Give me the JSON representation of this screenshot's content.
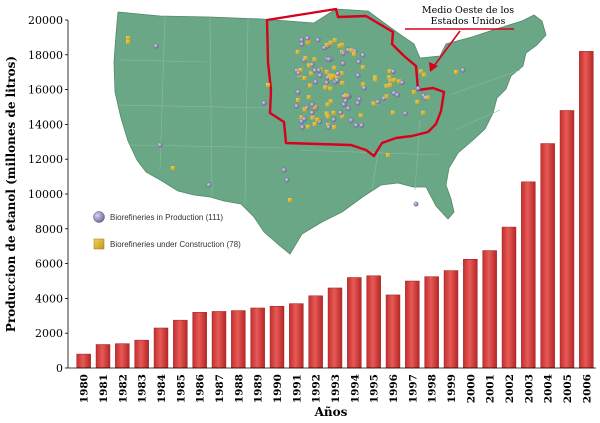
{
  "chart_data": {
    "type": "bar",
    "xlabel": "Años",
    "ylabel": "Produccion de etanol (millones de litros)",
    "ylim": [
      0,
      20000
    ],
    "yticks": [
      0,
      2000,
      4000,
      6000,
      8000,
      10000,
      12000,
      14000,
      16000,
      18000,
      20000
    ],
    "grid": false,
    "bar_color": "#d43d3d",
    "categories": [
      "1980",
      "1981",
      "1982",
      "1983",
      "1984",
      "1985",
      "1986",
      "1987",
      "1988",
      "1989",
      "1990",
      "1991",
      "1992",
      "1993",
      "1994",
      "1995",
      "1996",
      "1997",
      "1998",
      "1999",
      "2000",
      "2001",
      "2002",
      "2003",
      "2004",
      "2005",
      "2006"
    ],
    "values": [
      800,
      1350,
      1400,
      1600,
      2300,
      2750,
      3200,
      3250,
      3300,
      3450,
      3550,
      3700,
      4150,
      4600,
      5200,
      5300,
      4200,
      5000,
      5250,
      5600,
      6250,
      6750,
      8100,
      10700,
      12900,
      14800,
      18200
    ]
  },
  "map_inset": {
    "callout_line1": "Medio Oeste de los",
    "callout_line2": "Estados Unidos",
    "legend": [
      {
        "label": "Biorefineries in Production (111)",
        "color": "#8d83b5"
      },
      {
        "label": "Biorefineries under Construction (78)",
        "color": "#e1b42a"
      }
    ],
    "land_color": "#6aa786",
    "highlight_color": "#d8001c"
  }
}
